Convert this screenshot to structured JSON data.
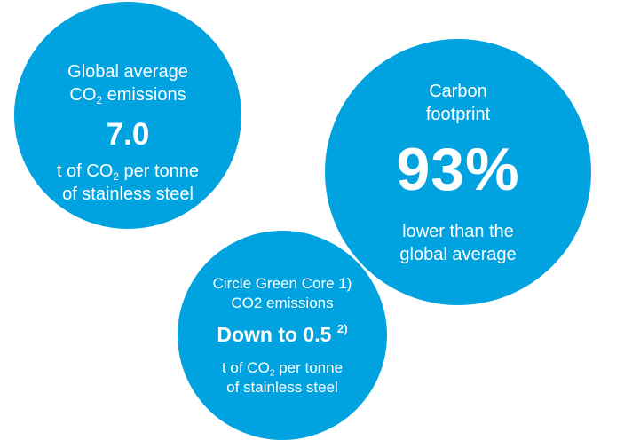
{
  "colors": {
    "circle_fill": "#00a3e0",
    "text": "#ffffff",
    "background": "#ffffff"
  },
  "global_average": {
    "title_line1": "Global average",
    "title_line2_prefix": "CO",
    "title_line2_sub": "2",
    "title_line2_suffix": " emissions",
    "value": "7.0",
    "unit_line1_prefix": "t of CO",
    "unit_line1_sub": "2",
    "unit_line1_suffix": " per tonne",
    "unit_line2": "of stainless steel"
  },
  "carbon_footprint": {
    "title_line1": "Carbon",
    "title_line2": "footprint",
    "value": "93%",
    "desc_line1": "lower than the",
    "desc_line2": "global average"
  },
  "circle_green_core": {
    "title_line1": "Circle Green Core 1)",
    "title_line2": "CO2 emissions",
    "value": "Down to 0.5",
    "value_footnote": "2)",
    "unit_line1_prefix": "t of CO",
    "unit_line1_sub": "2",
    "unit_line1_suffix": " per tonne",
    "unit_line2": "of stainless steel"
  }
}
